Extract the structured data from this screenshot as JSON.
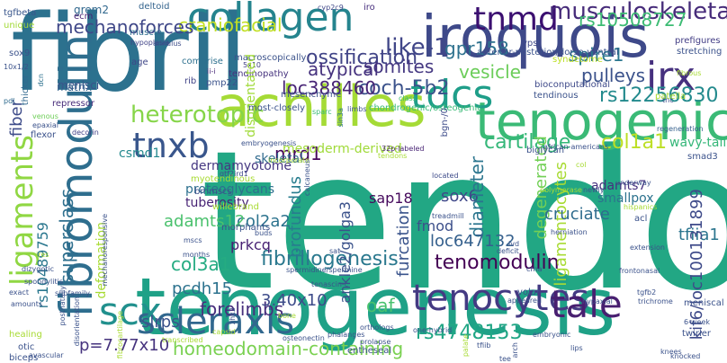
{
  "words": [
    {
      "text": "tendon",
      "color": "#22a784"
    },
    {
      "text": "tenogenesis",
      "color": "#1fa187"
    },
    {
      "text": "fibril",
      "color": "#2c718e"
    },
    {
      "text": "iroquois",
      "color": "#3e4989"
    },
    {
      "text": "achilles",
      "color": "#a5db36"
    },
    {
      "text": "tenogenic",
      "color": "#3aba76"
    },
    {
      "text": "fibromodulin",
      "color": "#2e6e8e"
    },
    {
      "text": "collagen",
      "color": "#25848e"
    },
    {
      "text": "tnmd",
      "color": "#3b0f70"
    },
    {
      "text": "ligaments",
      "color": "#90d743"
    },
    {
      "text": "scleraxis",
      "color": "#31678e"
    },
    {
      "text": "tenocytes",
      "color": "#443a83"
    },
    {
      "text": "scx",
      "color": "#21908d"
    },
    {
      "text": "tdcs",
      "color": "#1f9e89"
    },
    {
      "text": "tale",
      "color": "#481f70"
    },
    {
      "text": "irx",
      "color": "#46307e"
    },
    {
      "text": "tnxb",
      "color": "#39568c"
    },
    {
      "text": "musculoskeletal",
      "color": "#472c7a"
    },
    {
      "text": "heterotopic",
      "color": "#86d549"
    },
    {
      "text": "like-1",
      "color": "#404688"
    },
    {
      "text": "craniofacial",
      "color": "#c2df23"
    },
    {
      "text": "mechanoforces",
      "color": "#3f4788"
    },
    {
      "text": "ossification",
      "color": "#414487"
    },
    {
      "text": "cartilage",
      "color": "#35b779"
    },
    {
      "text": "col1a1",
      "color": "#bddf26"
    },
    {
      "text": "tenomodulin",
      "color": "#440154"
    },
    {
      "text": "fibrillogenesis",
      "color": "#2a788e"
    },
    {
      "text": "homeodomain-containing",
      "color": "#7ad151"
    },
    {
      "text": "superclass",
      "color": "#2e6f8e"
    },
    {
      "text": "rs4748153",
      "color": "#21a685"
    },
    {
      "text": "forelimbs",
      "color": "#472f7d"
    },
    {
      "text": "coch-5b2",
      "color": "#3b528b"
    },
    {
      "text": "rs12256830",
      "color": "#238a8d"
    },
    {
      "text": "gpr158",
      "color": "#2d718e"
    },
    {
      "text": "rs10508727",
      "color": "#3dbc74"
    },
    {
      "text": "loc388460",
      "color": "#482576"
    },
    {
      "text": "somites",
      "color": "#453882"
    },
    {
      "text": "atypical",
      "color": "#46327e"
    },
    {
      "text": "vesicle",
      "color": "#6ccd5a"
    },
    {
      "text": "pulleys",
      "color": "#3b528b"
    },
    {
      "text": "spire1",
      "color": "#2a768e"
    },
    {
      "text": "mrd1",
      "color": "#46085c"
    },
    {
      "text": "sox6",
      "color": "#3f4889"
    },
    {
      "text": "diameter",
      "color": "#2b758e"
    },
    {
      "text": "furcation",
      "color": "#3a548c"
    },
    {
      "text": "profundus",
      "color": "#287d8e"
    },
    {
      "text": "col3a1",
      "color": "#25ab82"
    },
    {
      "text": "col2a2",
      "color": "#2c738e"
    },
    {
      "text": "adamts12",
      "color": "#4ac16d"
    },
    {
      "text": "ligamentocytes",
      "color": "#a8db34"
    },
    {
      "text": "tfiia1",
      "color": "#2b758e"
    },
    {
      "text": "kif6/loc100131899",
      "color": "#3e4a89"
    },
    {
      "text": "loc647132",
      "color": "#35608d"
    },
    {
      "text": "oaf",
      "color": "#48c16e"
    },
    {
      "text": "3.40x10",
      "color": "#3e4c8a"
    },
    {
      "text": "pcdh15",
      "color": "#2c728e"
    },
    {
      "text": "slrps",
      "color": "#3b528b"
    },
    {
      "text": "p=7.77x10",
      "color": "#46337e"
    },
    {
      "text": "rs10489759",
      "color": "#2a778e"
    },
    {
      "text": "fiber",
      "color": "#3e4c8a"
    },
    {
      "text": "degenerated",
      "color": "#73d056"
    },
    {
      "text": "cruciate",
      "color": "#2f6c8e"
    },
    {
      "text": "sap18",
      "color": "#460a5d"
    },
    {
      "text": "fmod",
      "color": "#3c4f8a"
    },
    {
      "text": "ankle2/golga3",
      "color": "#3b528b"
    },
    {
      "text": "prkcq",
      "color": "#482173"
    },
    {
      "text": "tuberosity",
      "color": "#482475"
    },
    {
      "text": "proteoglycans",
      "color": "#2d708e"
    },
    {
      "text": "dermamyotome",
      "color": "#453781"
    },
    {
      "text": "skeletal",
      "color": "#306a8e"
    },
    {
      "text": "mesoderm-derived",
      "color": "#a0da39"
    },
    {
      "text": "csmd1",
      "color": "#23898e"
    },
    {
      "text": "deformation",
      "color": "#a8db34"
    },
    {
      "text": "smallpox",
      "color": "#2c728e"
    },
    {
      "text": "adamts7",
      "color": "#46307e"
    },
    {
      "text": "sox9",
      "color": "#3b528b"
    },
    {
      "text": "grem2",
      "color": "#31688e"
    },
    {
      "text": "ecm",
      "color": "#482173"
    },
    {
      "text": "tgfbeta",
      "color": "#39568c"
    },
    {
      "text": "unique",
      "color": "#a2da37"
    },
    {
      "text": "deltoid",
      "color": "#33638d"
    },
    {
      "text": "muscle",
      "color": "#2e6e8e"
    },
    {
      "text": "hypoplasia",
      "color": "#414487"
    },
    {
      "text": "cyp2c9",
      "color": "#3f4788"
    },
    {
      "text": "iro",
      "color": "#472f7d"
    },
    {
      "text": "vps",
      "color": "#3f4788"
    },
    {
      "text": "prefigures",
      "color": "#433e85"
    },
    {
      "text": "stretching",
      "color": "#3b528b"
    },
    {
      "text": "anterior-posterior/dorso-ventral",
      "color": "#3b528b"
    },
    {
      "text": "annulus",
      "color": "#3d4d8a"
    },
    {
      "text": "ii-i",
      "color": "#482878"
    },
    {
      "text": "menisci",
      "color": "#3b528b"
    },
    {
      "text": "age",
      "color": "#3f4788"
    },
    {
      "text": "comprise",
      "color": "#2d708e"
    },
    {
      "text": "macroscopically",
      "color": "#3b528b"
    },
    {
      "text": "5x10",
      "color": "#424086"
    },
    {
      "text": "tendinopathy",
      "color": "#46337e"
    },
    {
      "text": "disorientated",
      "color": "#a0da39"
    },
    {
      "text": "syndetome",
      "color": "#bddf26"
    },
    {
      "text": "bioconputational",
      "color": "#3e4989"
    },
    {
      "text": "10x1/2",
      "color": "#3b528b"
    },
    {
      "text": "matrix",
      "color": "#33638d"
    },
    {
      "text": "thicker",
      "color": "#31688e"
    },
    {
      "text": "dcn",
      "color": "#2d718e"
    },
    {
      "text": "pdl",
      "color": "#2f6b8e"
    },
    {
      "text": "repressor",
      "color": "#472c7a"
    },
    {
      "text": "rib",
      "color": "#414487"
    },
    {
      "text": "pmp22",
      "color": "#3b528b"
    },
    {
      "text": "mesenchyme",
      "color": "#3b528b"
    },
    {
      "text": "tendinous",
      "color": "#3b528b"
    },
    {
      "text": "class",
      "color": "#3aba76"
    },
    {
      "text": "tnc",
      "color": "#3e4c8a"
    },
    {
      "text": "patella",
      "color": "#a8db34"
    },
    {
      "text": "fibrous",
      "color": "#a8db34"
    },
    {
      "text": "venous",
      "color": "#6ece58"
    },
    {
      "text": "epaxial",
      "color": "#3b528b"
    },
    {
      "text": "flexor",
      "color": "#3b528b"
    },
    {
      "text": "decorin",
      "color": "#424086"
    },
    {
      "text": "most-closely",
      "color": "#3b528b"
    },
    {
      "text": "sparc",
      "color": "#3aba76"
    },
    {
      "text": "limbs",
      "color": "#3b528b"
    },
    {
      "text": "sin3a",
      "color": "#2d708e"
    },
    {
      "text": "chondrogenic/osteogenic",
      "color": "#3aba76"
    },
    {
      "text": "bgn-/0",
      "color": "#3e4c8a"
    },
    {
      "text": "regeneration",
      "color": "#35608d"
    },
    {
      "text": "wavy-tail",
      "color": "#35b779"
    },
    {
      "text": "smad3",
      "color": "#3b528b"
    },
    {
      "text": "embryogenesis",
      "color": "#3b528b"
    },
    {
      "text": "32p-labeled",
      "color": "#482475"
    },
    {
      "text": "biglycan",
      "color": "#3b528b"
    },
    {
      "text": "african-americans",
      "color": "#3b528b"
    },
    {
      "text": "col",
      "color": "#a8db34"
    },
    {
      "text": "tendons",
      "color": "#a8db34"
    },
    {
      "text": "incorporate",
      "color": "#a8db34"
    },
    {
      "text": "calcaneus",
      "color": "#3b528b"
    },
    {
      "text": "buds",
      "color": "#3b528b"
    },
    {
      "text": "gtf2ird1",
      "color": "#3e4c8a"
    },
    {
      "text": "located",
      "color": "#3e4c8a"
    },
    {
      "text": "newly",
      "color": "#3b528b"
    },
    {
      "text": "polymerase",
      "color": "#a8db34"
    },
    {
      "text": "underway",
      "color": "#3b528b"
    },
    {
      "text": "myotendinous",
      "color": "#a8db34"
    },
    {
      "text": "bmmscs",
      "color": "#3b528b"
    },
    {
      "text": "willebrand",
      "color": "#a8db34"
    },
    {
      "text": "morphants",
      "color": "#3b528b"
    },
    {
      "text": "hispanics",
      "color": "#a8db34"
    },
    {
      "text": "acl",
      "color": "#3b528b"
    },
    {
      "text": "treadmill",
      "color": "#3b528b"
    },
    {
      "text": "herniation",
      "color": "#3b528b"
    },
    {
      "text": "mechanoresponsive",
      "color": "#3b528b"
    },
    {
      "text": "mscs",
      "color": "#3b528b"
    },
    {
      "text": "months",
      "color": "#3b528b"
    },
    {
      "text": "ires",
      "color": "#a8db34"
    },
    {
      "text": "exact",
      "color": "#3b528b"
    },
    {
      "text": "dizygotic",
      "color": "#3b528b"
    },
    {
      "text": "spondylitis",
      "color": "#3b528b"
    },
    {
      "text": "sat",
      "color": "#3b528b"
    },
    {
      "text": "deficit",
      "color": "#3b528b"
    },
    {
      "text": "ivd",
      "color": "#3b528b"
    },
    {
      "text": "extension",
      "color": "#3b528b"
    },
    {
      "text": "spermidine/spermine",
      "color": "#3b528b"
    },
    {
      "text": "tenascin-c",
      "color": "#3b528b"
    },
    {
      "text": "frontonasal",
      "color": "#3b528b"
    },
    {
      "text": "crna",
      "color": "#3b528b"
    },
    {
      "text": "volar",
      "color": "#3b528b"
    },
    {
      "text": "appeared",
      "color": "#3b528b"
    },
    {
      "text": "hypaxial",
      "color": "#3b528b"
    },
    {
      "text": "tgfb2",
      "color": "#3b528b"
    },
    {
      "text": "trichrome",
      "color": "#3b528b"
    },
    {
      "text": "meniscal",
      "color": "#3b528b"
    },
    {
      "text": "6-week",
      "color": "#3b528b"
    },
    {
      "text": "twirler",
      "color": "#3b528b"
    },
    {
      "text": "subfamily",
      "color": "#3b528b"
    },
    {
      "text": "amounts",
      "color": "#3b528b"
    },
    {
      "text": "healing",
      "color": "#a8db34"
    },
    {
      "text": "otic",
      "color": "#3b528b"
    },
    {
      "text": "biceps",
      "color": "#3b528b"
    },
    {
      "text": "avascular",
      "color": "#3b528b"
    },
    {
      "text": "fibrocartilage",
      "color": "#a8db34"
    },
    {
      "text": "transcribed",
      "color": "#a8db34"
    },
    {
      "text": "capsid",
      "color": "#a8db34"
    },
    {
      "text": "zhx2",
      "color": "#3b528b"
    },
    {
      "text": "osteonectin",
      "color": "#3b528b"
    },
    {
      "text": "bone",
      "color": "#a8db34"
    },
    {
      "text": "phalanges",
      "color": "#3b528b"
    },
    {
      "text": "orthologs",
      "color": "#3b528b"
    },
    {
      "text": "one-hybrid",
      "color": "#3b528b"
    },
    {
      "text": "prolapse",
      "color": "#3b528b"
    },
    {
      "text": "palate",
      "color": "#a8db34"
    },
    {
      "text": "tfiib",
      "color": "#3b528b"
    },
    {
      "text": "arch",
      "color": "#3b528b"
    },
    {
      "text": "embryonic",
      "color": "#3b528b"
    },
    {
      "text": "lips",
      "color": "#3b528b"
    },
    {
      "text": "knees",
      "color": "#3b528b"
    },
    {
      "text": "postnatally",
      "color": "#3b528b"
    },
    {
      "text": "disorientation",
      "color": "#3b528b"
    },
    {
      "text": "entheseal",
      "color": "#3b528b"
    },
    {
      "text": "tee",
      "color": "#3b528b"
    },
    {
      "text": "knocked",
      "color": "#3b528b"
    }
  ]
}
